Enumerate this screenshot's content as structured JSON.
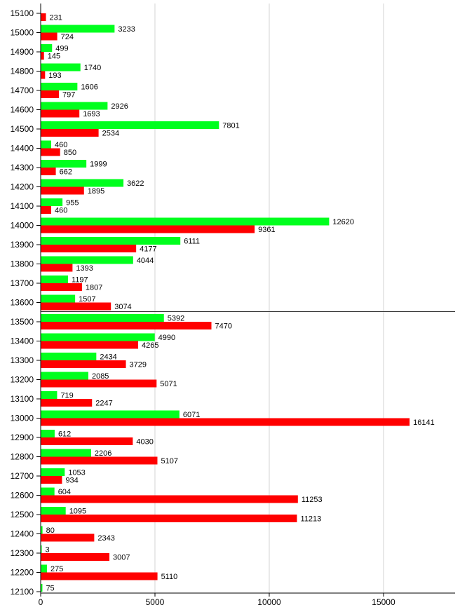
{
  "chart_data": {
    "type": "bar",
    "orientation": "horizontal",
    "categories": [
      "15100",
      "15000",
      "14900",
      "14800",
      "14700",
      "14600",
      "14500",
      "14400",
      "14300",
      "14200",
      "14100",
      "14000",
      "13900",
      "13800",
      "13700",
      "13600",
      "13500",
      "13400",
      "13300",
      "13200",
      "13100",
      "13000",
      "12900",
      "12800",
      "12700",
      "12600",
      "12500",
      "12400",
      "12300",
      "12200",
      "12100"
    ],
    "series": [
      {
        "color": "#00ff1e",
        "values": [
          null,
          3233,
          499,
          1740,
          1606,
          2926,
          7801,
          460,
          1999,
          3622,
          955,
          12620,
          6111,
          4044,
          1197,
          1507,
          5392,
          4990,
          2434,
          2085,
          719,
          6071,
          612,
          2206,
          1053,
          604,
          1095,
          80,
          3,
          275,
          75
        ]
      },
      {
        "color": "#ff0000",
        "values": [
          231,
          724,
          145,
          193,
          797,
          1693,
          2534,
          850,
          662,
          1895,
          460,
          9361,
          4177,
          1393,
          1807,
          3074,
          7470,
          4265,
          3729,
          5071,
          2247,
          16141,
          4030,
          5107,
          934,
          11253,
          11213,
          2343,
          3007,
          5110,
          null
        ]
      }
    ],
    "xticks": [
      "0",
      "5000",
      "10000",
      "15000"
    ],
    "xlim": [
      0,
      18130
    ],
    "grid": "vertical",
    "reference_line_below": "13600",
    "title": "",
    "xlabel": "",
    "ylabel": ""
  }
}
